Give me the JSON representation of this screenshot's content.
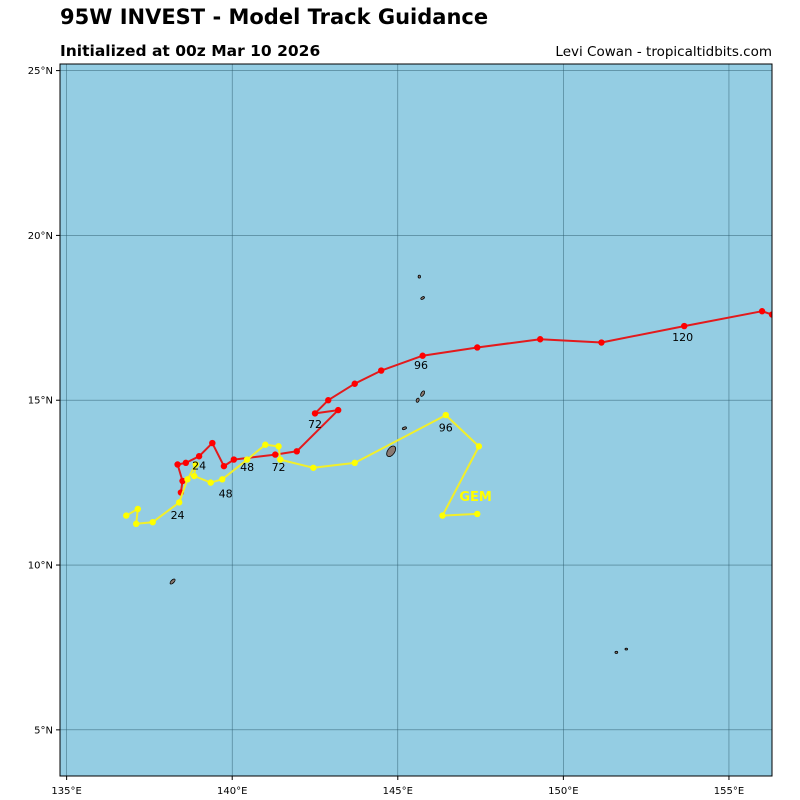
{
  "header": {
    "title": "95W INVEST - Model Track Guidance",
    "subtitle": "Initialized at 00z Mar 10 2026",
    "credit": "Levi Cowan - tropicaltidbits.com"
  },
  "colors": {
    "ocean": "#94cde3",
    "land": "#8a7a72",
    "grid": "#2f5f70",
    "red_track": "#e31a1c",
    "yellow_track": "#f2ef2a",
    "red_point": "#ff0000",
    "yellow_point": "#ffff00"
  },
  "map": {
    "lon_range": [
      134.8,
      156.3
    ],
    "lat_range": [
      3.6,
      25.2
    ],
    "x_ticks": [
      {
        "value": 135,
        "label": "135°E"
      },
      {
        "value": 140,
        "label": "140°E"
      },
      {
        "value": 145,
        "label": "145°E"
      },
      {
        "value": 150,
        "label": "150°E"
      },
      {
        "value": 155,
        "label": "155°E"
      }
    ],
    "y_ticks": [
      {
        "value": 5,
        "label": "5°N"
      },
      {
        "value": 10,
        "label": "10°N"
      },
      {
        "value": 15,
        "label": "15°N"
      },
      {
        "value": 20,
        "label": "20°N"
      },
      {
        "value": 25,
        "label": "25°N"
      }
    ],
    "islands": [
      {
        "name": "Guam",
        "lon": 144.8,
        "lat": 13.45
      },
      {
        "name": "Rota",
        "lon": 145.2,
        "lat": 14.15
      },
      {
        "name": "Tinian",
        "lon": 145.6,
        "lat": 15.0
      },
      {
        "name": "Saipan",
        "lon": 145.75,
        "lat": 15.2
      },
      {
        "name": "Anatahan",
        "lon": 145.75,
        "lat": 18.1
      },
      {
        "name": "Pagan",
        "lon": 145.65,
        "lat": 18.75
      },
      {
        "name": "Ngulu",
        "lon": 138.2,
        "lat": 9.5
      },
      {
        "name": "Chuuk-1",
        "lon": 151.6,
        "lat": 7.35
      },
      {
        "name": "Chuuk-2",
        "lon": 151.9,
        "lat": 7.45
      }
    ]
  },
  "chart_data": {
    "type": "map-tracks",
    "x_axis": "longitude (°E)",
    "y_axis": "latitude (°N)",
    "tracks": [
      {
        "model": "red",
        "points": [
          [
            138.45,
            12.2
          ],
          [
            138.5,
            12.55
          ],
          [
            138.35,
            13.05
          ],
          [
            138.6,
            13.1
          ],
          [
            139.0,
            13.3
          ],
          [
            139.4,
            13.7
          ],
          [
            139.75,
            13.0
          ],
          [
            140.05,
            13.2
          ],
          [
            141.3,
            13.35
          ],
          [
            141.95,
            13.45
          ],
          [
            143.2,
            14.7
          ],
          [
            142.5,
            14.6
          ],
          [
            142.9,
            15.0
          ],
          [
            143.7,
            15.5
          ],
          [
            144.5,
            15.9
          ],
          [
            145.75,
            16.35
          ],
          [
            147.4,
            16.6
          ],
          [
            149.3,
            16.85
          ],
          [
            151.15,
            16.75
          ],
          [
            153.65,
            17.25
          ],
          [
            156.0,
            17.7
          ],
          [
            156.3,
            17.6
          ]
        ],
        "labels": [
          {
            "text": "24",
            "lon": 139.0,
            "lat": 12.9
          },
          {
            "text": "48",
            "lon": 140.45,
            "lat": 12.85
          },
          {
            "text": "72",
            "lon": 142.5,
            "lat": 14.15
          },
          {
            "text": "96",
            "lon": 145.7,
            "lat": 15.95
          },
          {
            "text": "120",
            "lon": 153.6,
            "lat": 16.8
          }
        ]
      },
      {
        "model": "GEM",
        "points": [
          [
            136.8,
            11.5
          ],
          [
            137.15,
            11.7
          ],
          [
            137.1,
            11.25
          ],
          [
            137.6,
            11.3
          ],
          [
            138.4,
            11.9
          ],
          [
            138.65,
            12.6
          ],
          [
            138.9,
            13.05
          ],
          [
            138.85,
            12.7
          ],
          [
            139.35,
            12.5
          ],
          [
            139.7,
            12.6
          ],
          [
            140.45,
            13.2
          ],
          [
            141.0,
            13.65
          ],
          [
            141.4,
            13.6
          ],
          [
            141.45,
            13.2
          ],
          [
            142.45,
            12.95
          ],
          [
            143.7,
            13.1
          ],
          [
            146.45,
            14.55
          ],
          [
            147.45,
            13.6
          ],
          [
            146.35,
            11.5
          ],
          [
            147.4,
            11.55
          ]
        ],
        "labels": [
          {
            "text": "24",
            "lon": 138.35,
            "lat": 11.4
          },
          {
            "text": "48",
            "lon": 139.8,
            "lat": 12.05
          },
          {
            "text": "72",
            "lon": 141.4,
            "lat": 12.85
          },
          {
            "text": "96",
            "lon": 146.45,
            "lat": 14.05
          }
        ],
        "name_label": {
          "text": "GEM",
          "lon": 147.35,
          "lat": 11.95
        }
      }
    ]
  }
}
